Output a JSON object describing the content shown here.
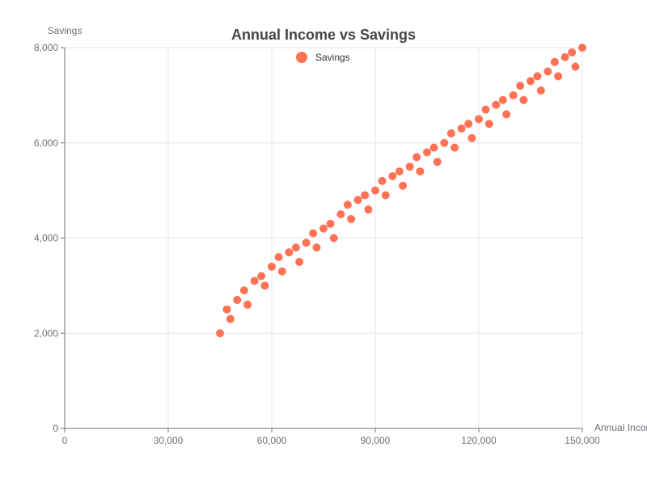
{
  "chart_data": {
    "type": "scatter",
    "title": "Annual Income vs Savings",
    "xlabel": "Annual Income",
    "ylabel": "Savings",
    "xlim": [
      0,
      150000
    ],
    "ylim": [
      0,
      8000
    ],
    "x_ticks": [
      0,
      30000,
      60000,
      90000,
      120000,
      150000
    ],
    "y_ticks": [
      0,
      2000,
      4000,
      6000,
      8000
    ],
    "x_tick_labels": [
      "0",
      "30,000",
      "60,000",
      "90,000",
      "120,000",
      "150,000"
    ],
    "y_tick_labels": [
      "0",
      "2,000",
      "4,000",
      "6,000",
      "8,000"
    ],
    "grid": true,
    "legend_position": "top-center",
    "color": "#ff7256",
    "series": [
      {
        "name": "Savings",
        "points": [
          [
            45000,
            2000
          ],
          [
            47000,
            2500
          ],
          [
            48000,
            2300
          ],
          [
            50000,
            2700
          ],
          [
            52000,
            2900
          ],
          [
            53000,
            2600
          ],
          [
            55000,
            3100
          ],
          [
            57000,
            3200
          ],
          [
            58000,
            3000
          ],
          [
            60000,
            3400
          ],
          [
            62000,
            3600
          ],
          [
            63000,
            3300
          ],
          [
            65000,
            3700
          ],
          [
            67000,
            3800
          ],
          [
            68000,
            3500
          ],
          [
            70000,
            3900
          ],
          [
            72000,
            4100
          ],
          [
            73000,
            3800
          ],
          [
            75000,
            4200
          ],
          [
            77000,
            4300
          ],
          [
            78000,
            4000
          ],
          [
            80000,
            4500
          ],
          [
            82000,
            4700
          ],
          [
            83000,
            4400
          ],
          [
            85000,
            4800
          ],
          [
            87000,
            4900
          ],
          [
            88000,
            4600
          ],
          [
            90000,
            5000
          ],
          [
            92000,
            5200
          ],
          [
            93000,
            4900
          ],
          [
            95000,
            5300
          ],
          [
            97000,
            5400
          ],
          [
            98000,
            5100
          ],
          [
            100000,
            5500
          ],
          [
            102000,
            5700
          ],
          [
            103000,
            5400
          ],
          [
            105000,
            5800
          ],
          [
            107000,
            5900
          ],
          [
            108000,
            5600
          ],
          [
            110000,
            6000
          ],
          [
            112000,
            6200
          ],
          [
            113000,
            5900
          ],
          [
            115000,
            6300
          ],
          [
            117000,
            6400
          ],
          [
            118000,
            6100
          ],
          [
            120000,
            6500
          ],
          [
            122000,
            6700
          ],
          [
            123000,
            6400
          ],
          [
            125000,
            6800
          ],
          [
            127000,
            6900
          ],
          [
            128000,
            6600
          ],
          [
            130000,
            7000
          ],
          [
            132000,
            7200
          ],
          [
            133000,
            6900
          ],
          [
            135000,
            7300
          ],
          [
            137000,
            7400
          ],
          [
            138000,
            7100
          ],
          [
            140000,
            7500
          ],
          [
            142000,
            7700
          ],
          [
            143000,
            7400
          ],
          [
            145000,
            7800
          ],
          [
            147000,
            7900
          ],
          [
            148000,
            7600
          ],
          [
            150000,
            8000
          ]
        ]
      }
    ]
  }
}
